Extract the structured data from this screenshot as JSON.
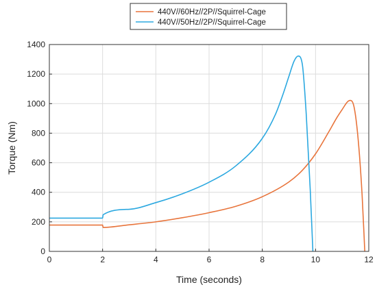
{
  "chart_data": {
    "type": "line",
    "title": "",
    "xlabel": "Time (seconds)",
    "ylabel": "Torque (Nm)",
    "xlim": [
      0,
      12
    ],
    "ylim": [
      0,
      1400
    ],
    "xticks": [
      0,
      2,
      4,
      6,
      8,
      10,
      12
    ],
    "yticks": [
      0,
      200,
      400,
      600,
      800,
      1000,
      1200,
      1400
    ],
    "grid": true,
    "legend_position": "top-center",
    "series": [
      {
        "name": "440V//60Hz//2P//Squirrel-Cage",
        "color": "#e8743b",
        "x": [
          0,
          1.98,
          2.0,
          2.02,
          3,
          4,
          5,
          6,
          7,
          8,
          9,
          9.5,
          10,
          10.5,
          10.8,
          11.0,
          11.2,
          11.3,
          11.45,
          11.6,
          11.75,
          11.85
        ],
        "y": [
          178,
          178,
          178,
          162,
          180,
          200,
          228,
          262,
          305,
          370,
          470,
          548,
          660,
          810,
          905,
          960,
          1012,
          1022,
          975,
          760,
          380,
          0
        ]
      },
      {
        "name": "440V//50Hz//2P//Squirrel-Cage",
        "color": "#2ba8e0",
        "x": [
          0,
          1.98,
          2.0,
          2.02,
          3,
          4,
          5,
          6,
          7,
          8,
          8.5,
          8.8,
          9.0,
          9.2,
          9.35,
          9.5,
          9.65,
          9.8,
          9.9
        ],
        "y": [
          225,
          225,
          225,
          248,
          285,
          330,
          390,
          468,
          578,
          765,
          930,
          1075,
          1185,
          1290,
          1322,
          1270,
          930,
          420,
          0
        ]
      }
    ]
  }
}
